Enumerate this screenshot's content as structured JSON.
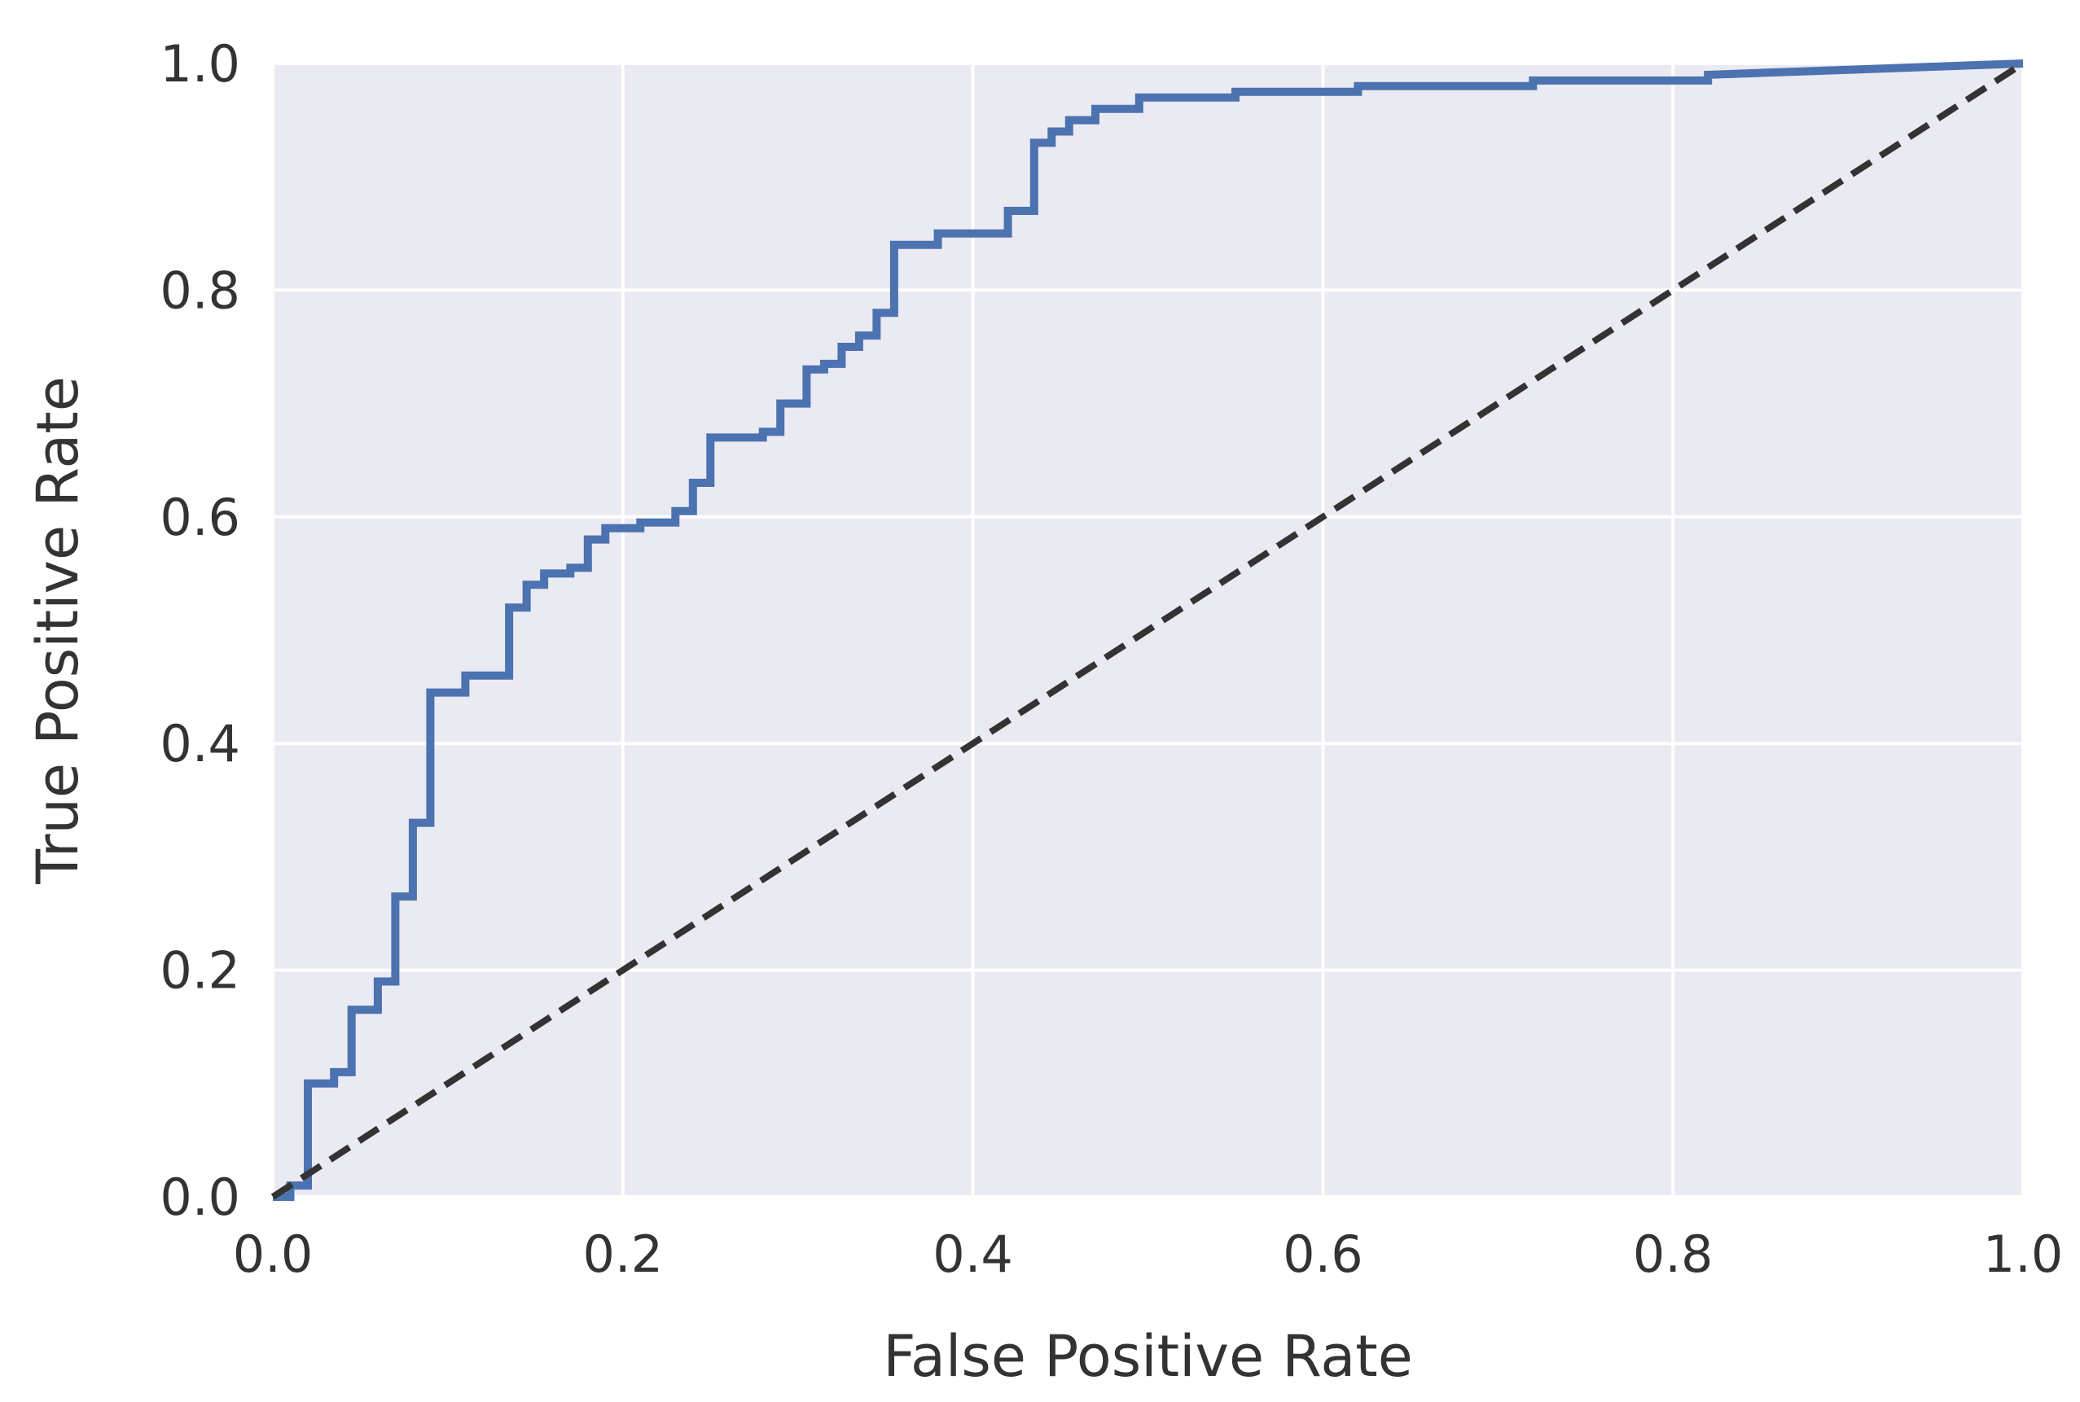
{
  "chart_data": {
    "type": "line",
    "title": "",
    "xlabel": "False Positive Rate",
    "ylabel": "True Positive Rate",
    "xlim": [
      0.0,
      1.0
    ],
    "ylim": [
      0.0,
      1.0
    ],
    "xticks": [
      "0.0",
      "0.2",
      "0.4",
      "0.6",
      "0.8",
      "1.0"
    ],
    "yticks": [
      "0.0",
      "0.2",
      "0.4",
      "0.6",
      "0.8",
      "1.0"
    ],
    "grid": true,
    "style": "seaborn-darkgrid",
    "colors": {
      "background": "#eaeaf2",
      "grid": "#ffffff",
      "roc": "#4c72b0",
      "diagonal": "#333333",
      "text": "#333333"
    },
    "series": [
      {
        "line_style": "solid",
        "x": [
          0.0,
          0.01,
          0.01,
          0.02,
          0.02,
          0.035,
          0.035,
          0.045,
          0.045,
          0.06,
          0.06,
          0.07,
          0.07,
          0.08,
          0.08,
          0.09,
          0.09,
          0.11,
          0.11,
          0.135,
          0.135,
          0.145,
          0.145,
          0.155,
          0.155,
          0.17,
          0.17,
          0.18,
          0.18,
          0.19,
          0.19,
          0.21,
          0.21,
          0.23,
          0.23,
          0.24,
          0.24,
          0.25,
          0.25,
          0.28,
          0.28,
          0.29,
          0.29,
          0.305,
          0.305,
          0.315,
          0.315,
          0.325,
          0.325,
          0.335,
          0.335,
          0.345,
          0.345,
          0.355,
          0.355,
          0.38,
          0.38,
          0.42,
          0.42,
          0.435,
          0.435,
          0.445,
          0.445,
          0.455,
          0.455,
          0.47,
          0.47,
          0.495,
          0.495,
          0.55,
          0.55,
          0.62,
          0.62,
          0.72,
          0.72,
          0.82,
          0.82,
          1.0
        ],
        "y": [
          0.0,
          0.0,
          0.01,
          0.01,
          0.1,
          0.1,
          0.11,
          0.11,
          0.165,
          0.165,
          0.19,
          0.19,
          0.265,
          0.265,
          0.33,
          0.33,
          0.445,
          0.445,
          0.46,
          0.46,
          0.52,
          0.52,
          0.54,
          0.54,
          0.55,
          0.55,
          0.555,
          0.555,
          0.58,
          0.58,
          0.59,
          0.59,
          0.595,
          0.595,
          0.605,
          0.605,
          0.63,
          0.63,
          0.67,
          0.67,
          0.675,
          0.675,
          0.7,
          0.7,
          0.73,
          0.73,
          0.735,
          0.735,
          0.75,
          0.75,
          0.76,
          0.76,
          0.78,
          0.78,
          0.84,
          0.84,
          0.85,
          0.85,
          0.87,
          0.87,
          0.93,
          0.93,
          0.94,
          0.94,
          0.95,
          0.95,
          0.96,
          0.96,
          0.97,
          0.97,
          0.975,
          0.975,
          0.98,
          0.98,
          0.985,
          0.985,
          0.99,
          1.0
        ]
      },
      {
        "line_style": "dashed",
        "x": [
          0.0,
          1.0
        ],
        "y": [
          0.0,
          1.0
        ]
      }
    ]
  }
}
